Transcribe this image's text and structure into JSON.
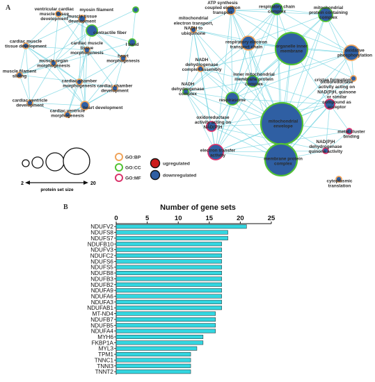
{
  "panel_labels": {
    "a": "A",
    "b": "B"
  },
  "network": {
    "colors": {
      "node_fill_down": "#2f5fa3",
      "node_fill_up": "#cc1b1b",
      "ring_bp": "#f0a45a",
      "ring_cc": "#52c234",
      "ring_mf": "#d9336b",
      "edge": "#6fd3e0"
    },
    "legend": {
      "types": [
        {
          "key": "bp",
          "label": "GO:BP"
        },
        {
          "key": "cc",
          "label": "GO:CC"
        },
        {
          "key": "mf",
          "label": "GO:MF"
        }
      ],
      "regulation": [
        {
          "key": "up",
          "label": "ugregulated"
        },
        {
          "key": "down",
          "label": "downregulated"
        }
      ],
      "size_min": "2",
      "size_max": "20",
      "size_caption": "protein set size"
    },
    "nodes": [
      {
        "id": "myosin",
        "label": "myosin filament",
        "type": "cc",
        "reg": "down",
        "size": 3
      },
      {
        "id": "vcmd",
        "label": "ventricular cardiac muscle tissue development",
        "type": "bp",
        "reg": "down",
        "size": 3
      },
      {
        "id": "mtd",
        "label": "muscle tissue development",
        "type": "bp",
        "reg": "down",
        "size": 3
      },
      {
        "id": "contractile",
        "label": "contractile fiber",
        "type": "cc",
        "reg": "down",
        "size": 6
      },
      {
        "id": "cmtd",
        "label": "cardiac muscle tissue development",
        "type": "bp",
        "reg": "down",
        "size": 3
      },
      {
        "id": "cmtm",
        "label": "cardiac muscle tissue morphogenesis",
        "type": "bp",
        "reg": "down",
        "size": 3
      },
      {
        "id": "iband",
        "label": "I band",
        "type": "cc",
        "reg": "down",
        "size": 4
      },
      {
        "id": "mom",
        "label": "muscle organ morphogenesis",
        "type": "bp",
        "reg": "down",
        "size": 3
      },
      {
        "id": "heartmorph",
        "label": "heart morphogenesis",
        "type": "bp",
        "reg": "down",
        "size": 3
      },
      {
        "id": "mfs",
        "label": "muscle filament sliding",
        "type": "bp",
        "reg": "down",
        "size": 3
      },
      {
        "id": "ccm",
        "label": "cardiac chamber morphogenesis",
        "type": "bp",
        "reg": "down",
        "size": 3
      },
      {
        "id": "ccd",
        "label": "cardiac chamber development",
        "type": "bp",
        "reg": "down",
        "size": 3
      },
      {
        "id": "cvd",
        "label": "cardiac ventricle development",
        "type": "bp",
        "reg": "down",
        "size": 3
      },
      {
        "id": "heartdev",
        "label": "heart development",
        "type": "bp",
        "reg": "down",
        "size": 4
      },
      {
        "id": "cvm",
        "label": "cardiac ventricle morphogenesis",
        "type": "bp",
        "reg": "down",
        "size": 3
      },
      {
        "id": "atp",
        "label": "ATP synthesis coupled electron transport",
        "type": "bp",
        "reg": "down",
        "size": 4
      },
      {
        "id": "rcc",
        "label": "respiratory chain complex",
        "type": "cc",
        "reg": "down",
        "size": 5
      },
      {
        "id": "mpcc",
        "label": "mitochondrial protein containing complex",
        "type": "cc",
        "reg": "down",
        "size": 6
      },
      {
        "id": "metn",
        "label": "mitochondrial electron transport, NADH to ubiquinone",
        "type": "bp",
        "reg": "down",
        "size": 3
      },
      {
        "id": "retc",
        "label": "respiratory electron transport chain",
        "type": "bp",
        "reg": "down",
        "size": 5
      },
      {
        "id": "oim",
        "label": "organelle inner membrane",
        "type": "cc",
        "reg": "down",
        "size": 14
      },
      {
        "id": "oxphos",
        "label": "oxidative phosphorylation",
        "type": "bp",
        "reg": "down",
        "size": 6
      },
      {
        "id": "ndca",
        "label": "NADH dehydrogenase complex assembly",
        "type": "bp",
        "reg": "down",
        "size": 3
      },
      {
        "id": "crista",
        "label": "cristae formation",
        "type": "bp",
        "reg": "down",
        "size": 3
      },
      {
        "id": "imm",
        "label": "inner mitochondrial membrane protein complex",
        "type": "cc",
        "reg": "down",
        "size": 5
      },
      {
        "id": "ndc",
        "label": "NADH dehydrogenase complex",
        "type": "cc",
        "reg": "down",
        "size": 3
      },
      {
        "id": "respirasome",
        "label": "respirasome",
        "type": "cc",
        "reg": "down",
        "size": 5
      },
      {
        "id": "oxnad",
        "label": "oxidoreductase activity acting on NAD(P)H, quinone or similar compound as acceptor",
        "type": "mf",
        "reg": "down",
        "size": 4
      },
      {
        "id": "oxnadph",
        "label": "oxidoreductase activity acting on NAD(P)H",
        "type": "mf",
        "reg": "down",
        "size": 4
      },
      {
        "id": "mitoenv",
        "label": "mitochondrial envelope",
        "type": "cc",
        "reg": "down",
        "size": 20
      },
      {
        "id": "metal",
        "label": "metal cluster binding",
        "type": "mf",
        "reg": "down",
        "size": 3
      },
      {
        "id": "eta",
        "label": "electron transfer activity",
        "type": "mf",
        "reg": "down",
        "size": 6
      },
      {
        "id": "mpc",
        "label": "membrane protein complex",
        "type": "cc",
        "reg": "down",
        "size": 11
      },
      {
        "id": "nadhq",
        "label": "NAD(P)H dehydrogenase quinone activity",
        "type": "mf",
        "reg": "down",
        "size": 3
      },
      {
        "id": "cytotrans",
        "label": "cytoplasmic translation",
        "type": "bp",
        "reg": "down",
        "size": 3
      }
    ]
  },
  "chart_data": {
    "type": "bar",
    "orientation": "horizontal",
    "title": "Number of gene sets",
    "xlim": [
      0,
      25
    ],
    "xticks": [
      "0",
      "5",
      "10",
      "15",
      "20",
      "25"
    ],
    "categories": [
      "NDUFV2",
      "NDUFS8",
      "NDUFS7",
      "NDUFB10",
      "NDUFV3",
      "NDUFC2",
      "NDUFS6",
      "NDUFS5",
      "NDUFB8",
      "NDUFB3",
      "NDUFB2",
      "NDUFA9",
      "NDUFA6",
      "NDUFA3",
      "NDUFAB1",
      "MT-ND4",
      "NDUFB7",
      "NDUFB5",
      "NDUFA4",
      "MYH6",
      "FKBP1A",
      "MYL3",
      "TPM1",
      "TNNC1",
      "TNNI3",
      "TNNT2"
    ],
    "values": [
      21,
      18,
      18,
      17,
      17,
      17,
      17,
      17,
      17,
      17,
      17,
      17,
      17,
      17,
      17,
      16,
      16,
      16,
      16,
      14,
      14,
      13,
      12,
      12,
      12,
      12
    ],
    "bar_color": "#33d6e0",
    "bar_edge": "#222222",
    "grid": false
  }
}
